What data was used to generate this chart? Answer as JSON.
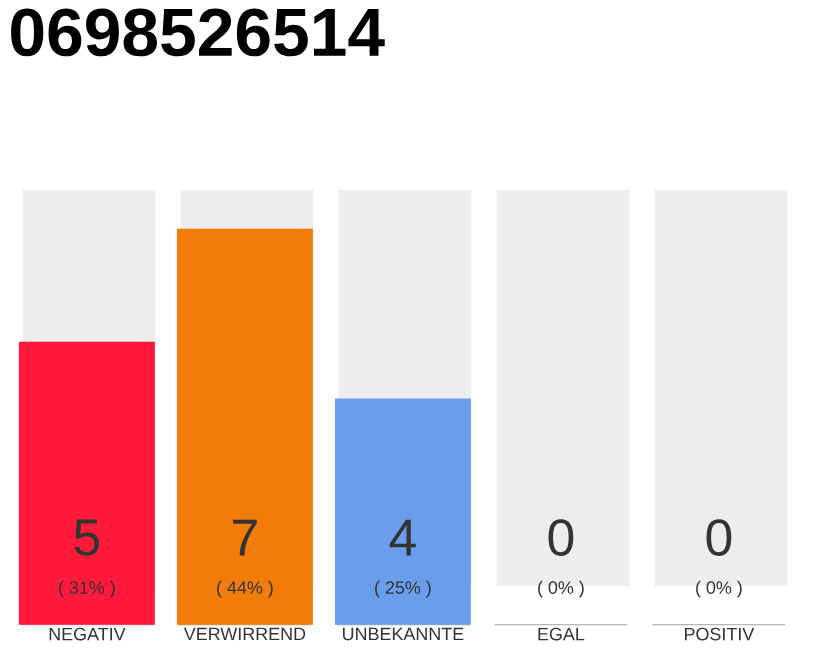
{
  "chart_data": {
    "type": "bar",
    "title": "0698526514",
    "categories": [
      "NEGATIV",
      "VERWIRREND",
      "UNBEKANNTE",
      "EGAL",
      "POSITIV"
    ],
    "values": [
      5,
      7,
      4,
      0,
      0
    ],
    "colors": [
      "#ff1a3c",
      "#f27c0a",
      "#6a9eec",
      "#b0b0b0",
      "#b0b0b0"
    ],
    "ylim": [
      0,
      7
    ],
    "tick_labels": "x",
    "data_labels": true,
    "annotations": [
      "( 31% )",
      "( 44% )",
      "( 25% )",
      "( 0% )",
      "( 0% )"
    ]
  }
}
